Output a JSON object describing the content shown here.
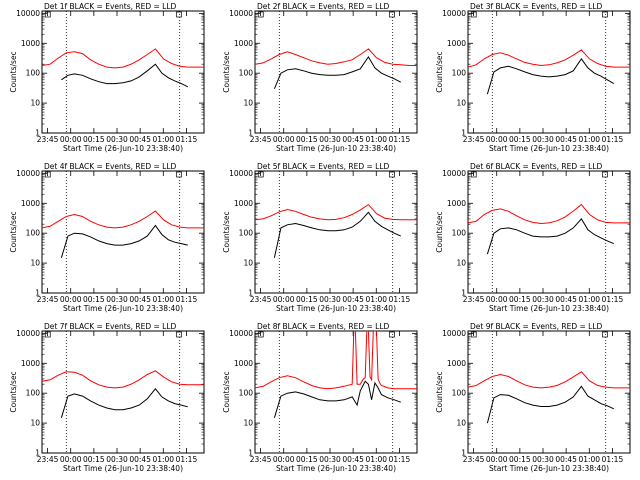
{
  "panels_common": {
    "xlabel": "Start Time (26-Jun-10 23:38:40)",
    "ylabel": "Counts/sec",
    "xticks": [
      "23:45",
      "00:00",
      "00:15",
      "00:30",
      "00:45",
      "01:00",
      "01:15"
    ],
    "yticks": [
      "1",
      "10",
      "100",
      "1000",
      "10000"
    ],
    "colors": {
      "events": "#000000",
      "lld": "#ff0000",
      "axis": "#000000"
    }
  },
  "chart_data": [
    {
      "type": "line",
      "title": "Det 1f BLACK = Events, RED = LLD",
      "marker": "",
      "xlabel": "Start Time (26-Jun-10 23:38:40)",
      "ylabel": "Counts/sec",
      "xlim": [
        0,
        100
      ],
      "ylim": [
        1,
        12000
      ],
      "log_y": true,
      "series": [
        {
          "name": "Events",
          "x": [
            12,
            16,
            20,
            25,
            30,
            35,
            40,
            45,
            50,
            55,
            60,
            65,
            70,
            74,
            78,
            82,
            86,
            90
          ],
          "y": [
            60,
            85,
            95,
            85,
            65,
            52,
            45,
            45,
            48,
            55,
            75,
            120,
            200,
            100,
            70,
            55,
            45,
            35
          ]
        },
        {
          "name": "LLD",
          "x": [
            0,
            5,
            10,
            15,
            20,
            25,
            30,
            35,
            40,
            45,
            50,
            55,
            60,
            65,
            70,
            75,
            80,
            85,
            90,
            95,
            100
          ],
          "y": [
            180,
            200,
            320,
            480,
            520,
            450,
            280,
            200,
            160,
            150,
            160,
            200,
            280,
            420,
            650,
            300,
            210,
            170,
            160,
            160,
            160
          ]
        }
      ]
    },
    {
      "type": "line",
      "title": "Det 2f BLACK = Events, RED = LLD",
      "marker": "",
      "xlabel": "Start Time (26-Jun-10 23:38:40)",
      "ylabel": "Counts/sec",
      "xlim": [
        0,
        100
      ],
      "ylim": [
        1,
        12000
      ],
      "log_y": true,
      "series": [
        {
          "name": "Events",
          "x": [
            12,
            16,
            20,
            25,
            30,
            35,
            40,
            45,
            50,
            55,
            60,
            65,
            70,
            74,
            78,
            82,
            86,
            90
          ],
          "y": [
            30,
            100,
            130,
            140,
            120,
            100,
            90,
            85,
            85,
            90,
            110,
            140,
            350,
            150,
            100,
            80,
            65,
            50
          ]
        },
        {
          "name": "LLD",
          "x": [
            0,
            5,
            10,
            15,
            20,
            25,
            30,
            35,
            40,
            45,
            50,
            55,
            60,
            65,
            70,
            75,
            80,
            85,
            90,
            95,
            100
          ],
          "y": [
            200,
            220,
            300,
            420,
            520,
            420,
            330,
            260,
            220,
            200,
            210,
            240,
            280,
            420,
            650,
            330,
            230,
            200,
            190,
            180,
            180
          ]
        }
      ]
    },
    {
      "type": "line",
      "title": "Det 3f BLACK = Events, RED = LLD",
      "marker": "",
      "xlabel": "Start Time (26-Jun-10 23:38:40)",
      "ylabel": "Counts/sec",
      "xlim": [
        0,
        100
      ],
      "ylim": [
        1,
        12000
      ],
      "log_y": true,
      "series": [
        {
          "name": "Events",
          "x": [
            12,
            16,
            20,
            25,
            30,
            35,
            40,
            45,
            50,
            55,
            60,
            65,
            70,
            74,
            78,
            82,
            86,
            90
          ],
          "y": [
            20,
            110,
            150,
            170,
            140,
            110,
            90,
            80,
            75,
            80,
            90,
            120,
            300,
            150,
            100,
            80,
            60,
            45
          ]
        },
        {
          "name": "LLD",
          "x": [
            0,
            5,
            10,
            15,
            20,
            25,
            30,
            35,
            40,
            45,
            50,
            55,
            60,
            65,
            70,
            75,
            80,
            85,
            90,
            95,
            100
          ],
          "y": [
            160,
            190,
            300,
            420,
            480,
            400,
            300,
            230,
            200,
            180,
            190,
            220,
            280,
            400,
            600,
            300,
            210,
            170,
            160,
            160,
            160
          ]
        }
      ]
    },
    {
      "type": "line",
      "title": "Det 4f BLACK = Events, RED = LLD",
      "marker": "",
      "xlabel": "Start Time (26-Jun-10 23:38:40)",
      "ylabel": "Counts/sec",
      "xlim": [
        0,
        100
      ],
      "ylim": [
        1,
        12000
      ],
      "log_y": true,
      "series": [
        {
          "name": "Events",
          "x": [
            12,
            16,
            20,
            25,
            30,
            35,
            40,
            45,
            50,
            55,
            60,
            65,
            70,
            74,
            78,
            82,
            86,
            90
          ],
          "y": [
            15,
            80,
            100,
            95,
            75,
            55,
            45,
            40,
            40,
            45,
            55,
            80,
            180,
            90,
            60,
            50,
            45,
            40
          ]
        },
        {
          "name": "LLD",
          "x": [
            0,
            5,
            10,
            15,
            20,
            25,
            30,
            35,
            40,
            45,
            50,
            55,
            60,
            65,
            70,
            75,
            80,
            85,
            90,
            95,
            100
          ],
          "y": [
            150,
            170,
            250,
            360,
            420,
            360,
            250,
            190,
            160,
            150,
            160,
            190,
            250,
            360,
            550,
            280,
            190,
            160,
            150,
            150,
            150
          ]
        }
      ]
    },
    {
      "type": "line",
      "title": "Det 5f BLACK = Events, RED = LLD",
      "marker": "",
      "xlabel": "Start Time (26-Jun-10 23:38:40)",
      "ylabel": "Counts/sec",
      "xlim": [
        0,
        100
      ],
      "ylim": [
        1,
        12000
      ],
      "log_y": true,
      "series": [
        {
          "name": "Events",
          "x": [
            12,
            16,
            20,
            25,
            30,
            35,
            40,
            45,
            50,
            55,
            60,
            65,
            70,
            74,
            78,
            82,
            86,
            90
          ],
          "y": [
            15,
            150,
            190,
            210,
            180,
            150,
            130,
            120,
            120,
            130,
            160,
            250,
            500,
            250,
            170,
            130,
            100,
            80
          ]
        },
        {
          "name": "LLD",
          "x": [
            0,
            5,
            10,
            15,
            20,
            25,
            30,
            35,
            40,
            45,
            50,
            55,
            60,
            65,
            70,
            75,
            80,
            85,
            90,
            95,
            100
          ],
          "y": [
            280,
            300,
            380,
            520,
            620,
            540,
            420,
            340,
            300,
            280,
            290,
            330,
            420,
            600,
            900,
            450,
            320,
            290,
            280,
            280,
            280
          ]
        }
      ]
    },
    {
      "type": "line",
      "title": "Det 6f BLACK = Events, RED = LLD",
      "marker": "",
      "xlabel": "Start Time (26-Jun-10 23:38:40)",
      "ylabel": "Counts/sec",
      "xlim": [
        0,
        100
      ],
      "ylim": [
        1,
        12000
      ],
      "log_y": true,
      "series": [
        {
          "name": "Events",
          "x": [
            12,
            16,
            20,
            25,
            30,
            35,
            40,
            45,
            50,
            55,
            60,
            65,
            70,
            74,
            78,
            82,
            86,
            90
          ],
          "y": [
            20,
            100,
            140,
            150,
            130,
            100,
            80,
            75,
            75,
            80,
            100,
            150,
            300,
            130,
            90,
            70,
            55,
            45
          ]
        },
        {
          "name": "LLD",
          "x": [
            0,
            5,
            10,
            15,
            20,
            25,
            30,
            35,
            40,
            45,
            50,
            55,
            60,
            65,
            70,
            75,
            80,
            85,
            90,
            95,
            100
          ],
          "y": [
            220,
            250,
            420,
            580,
            650,
            540,
            380,
            280,
            230,
            210,
            220,
            260,
            350,
            550,
            900,
            420,
            280,
            230,
            220,
            220,
            220
          ]
        }
      ]
    },
    {
      "type": "line",
      "title": "Det 7f BLACK = Events, RED = LLD",
      "marker": "",
      "xlabel": "Start Time (26-Jun-10 23:38:40)",
      "ylabel": "Counts/sec",
      "xlim": [
        0,
        100
      ],
      "ylim": [
        1,
        12000
      ],
      "log_y": true,
      "series": [
        {
          "name": "Events",
          "x": [
            12,
            16,
            20,
            25,
            30,
            35,
            40,
            45,
            50,
            55,
            60,
            65,
            70,
            74,
            78,
            82,
            86,
            90
          ],
          "y": [
            15,
            80,
            95,
            80,
            55,
            40,
            32,
            28,
            28,
            32,
            40,
            65,
            140,
            75,
            55,
            45,
            40,
            35
          ]
        },
        {
          "name": "LLD",
          "x": [
            0,
            5,
            10,
            15,
            20,
            25,
            30,
            35,
            40,
            45,
            50,
            55,
            60,
            65,
            70,
            75,
            80,
            85,
            90,
            95,
            100
          ],
          "y": [
            250,
            280,
            400,
            520,
            500,
            400,
            260,
            190,
            160,
            150,
            160,
            200,
            280,
            420,
            560,
            350,
            240,
            200,
            190,
            190,
            190
          ]
        }
      ]
    },
    {
      "type": "line",
      "title": "Det 8f BLACK = Events, RED = LLD",
      "marker": "",
      "xlabel": "Start Time (26-Jun-10 23:38:40)",
      "ylabel": "Counts/sec",
      "xlim": [
        0,
        100
      ],
      "ylim": [
        1,
        12000
      ],
      "log_y": true,
      "series": [
        {
          "name": "Events",
          "x": [
            12,
            16,
            20,
            25,
            30,
            35,
            40,
            45,
            50,
            55,
            60,
            63,
            65,
            68,
            70,
            72,
            74,
            76,
            78,
            82,
            86,
            90
          ],
          "y": [
            15,
            80,
            100,
            110,
            95,
            75,
            60,
            55,
            55,
            60,
            75,
            40,
            120,
            250,
            200,
            60,
            220,
            150,
            90,
            70,
            60,
            50
          ]
        },
        {
          "name": "LLD",
          "x": [
            0,
            5,
            10,
            15,
            20,
            25,
            30,
            35,
            40,
            45,
            50,
            55,
            60,
            61,
            62,
            63,
            64,
            65,
            66,
            67,
            68,
            69,
            70,
            71,
            72,
            73,
            74,
            75,
            76,
            77,
            78,
            82,
            86,
            90,
            95,
            100
          ],
          "y": [
            150,
            170,
            240,
            330,
            380,
            330,
            240,
            180,
            150,
            140,
            150,
            170,
            200,
            12000,
            12000,
            200,
            200,
            200,
            250,
            300,
            330,
            12000,
            12000,
            350,
            280,
            12000,
            12000,
            12000,
            300,
            220,
            180,
            150,
            140,
            140,
            140,
            140
          ]
        }
      ]
    },
    {
      "type": "line",
      "title": "Det 9f BLACK = Events, RED = LLD",
      "marker": "",
      "xlabel": "Start Time (26-Jun-10 23:38:40)",
      "ylabel": "Counts/sec",
      "xlim": [
        0,
        100
      ],
      "ylim": [
        1,
        12000
      ],
      "log_y": true,
      "series": [
        {
          "name": "Events",
          "x": [
            12,
            16,
            20,
            25,
            30,
            35,
            40,
            45,
            50,
            55,
            60,
            65,
            70,
            74,
            78,
            82,
            86,
            90
          ],
          "y": [
            10,
            70,
            90,
            85,
            65,
            48,
            40,
            36,
            36,
            40,
            50,
            75,
            170,
            80,
            60,
            45,
            38,
            30
          ]
        },
        {
          "name": "LLD",
          "x": [
            0,
            5,
            10,
            15,
            20,
            25,
            30,
            35,
            40,
            45,
            50,
            55,
            60,
            65,
            70,
            75,
            80,
            85,
            90,
            95,
            100
          ],
          "y": [
            160,
            180,
            260,
            360,
            420,
            360,
            260,
            190,
            160,
            150,
            160,
            180,
            240,
            350,
            520,
            260,
            180,
            160,
            150,
            150,
            150
          ]
        }
      ]
    }
  ]
}
